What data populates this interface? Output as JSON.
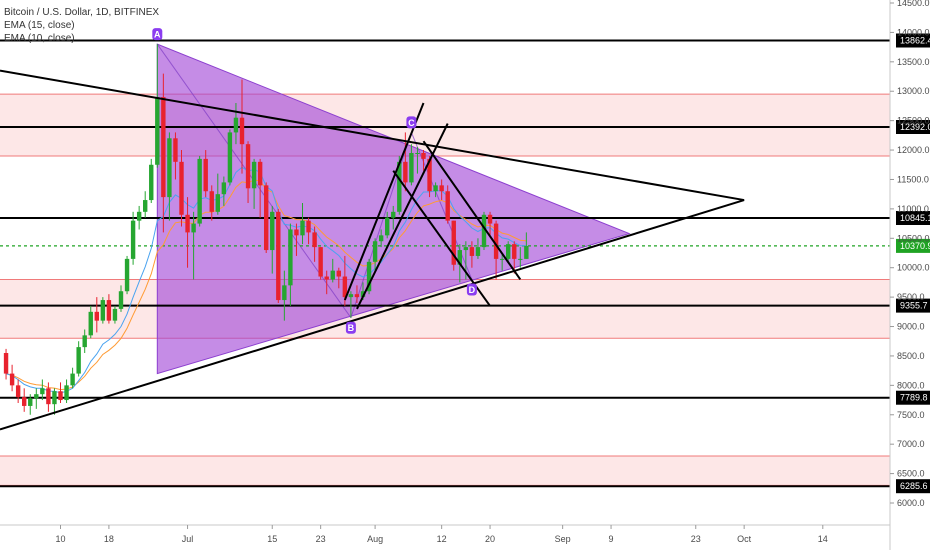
{
  "chart_data": {
    "type": "candlestick",
    "title": "Bitcoin / U.S. Dollar, 1D, BITFINEX",
    "indicators": [
      "EMA (15, close)",
      "EMA (10, close)"
    ],
    "y_axis": {
      "side": "right",
      "range": [
        5900,
        14600
      ],
      "ticks": [
        6000,
        6500,
        7000,
        7500,
        8000,
        8500,
        9000,
        9500,
        10000,
        10500,
        11000,
        11500,
        12000,
        12500,
        13000,
        13500,
        14000,
        14500
      ],
      "tick_labels": [
        "6000.0",
        "6500.0",
        "7000.0",
        "7500.0",
        "8000.0",
        "8500.0",
        "9000.0",
        "9500.0",
        "10000.0",
        "10500.0",
        "11000.0",
        "11500.0",
        "12000.0",
        "12500.0",
        "13000.0",
        "13500.0",
        "14000.0",
        "14500.0"
      ]
    },
    "x_axis": {
      "start": "2019-06-01",
      "ticks": [
        "2019-06-10",
        "2019-06-18",
        "2019-07-01",
        "2019-07-15",
        "2019-07-23",
        "2019-08-01",
        "2019-08-12",
        "2019-08-20",
        "2019-09-01",
        "2019-09-09",
        "2019-09-23",
        "2019-10-01",
        "2019-10-14"
      ],
      "tick_labels": [
        "10",
        "18",
        "Jul",
        "15",
        "23",
        "Aug",
        "12",
        "20",
        "Sep",
        "9",
        "23",
        "Oct",
        "14"
      ]
    },
    "grid": false,
    "candles": [
      {
        "date": "2019-06-01",
        "o": 8550,
        "h": 8620,
        "l": 8100,
        "c": 8200
      },
      {
        "date": "2019-06-02",
        "o": 8200,
        "h": 8350,
        "l": 7900,
        "c": 8000
      },
      {
        "date": "2019-06-03",
        "o": 8000,
        "h": 8100,
        "l": 7700,
        "c": 7800
      },
      {
        "date": "2019-06-04",
        "o": 7800,
        "h": 7950,
        "l": 7550,
        "c": 7650
      },
      {
        "date": "2019-06-05",
        "o": 7650,
        "h": 7850,
        "l": 7500,
        "c": 7780
      },
      {
        "date": "2019-06-06",
        "o": 7780,
        "h": 7950,
        "l": 7600,
        "c": 7850
      },
      {
        "date": "2019-06-07",
        "o": 7850,
        "h": 8100,
        "l": 7750,
        "c": 7950
      },
      {
        "date": "2019-06-08",
        "o": 7950,
        "h": 8050,
        "l": 7550,
        "c": 7680
      },
      {
        "date": "2019-06-09",
        "o": 7680,
        "h": 7950,
        "l": 7500,
        "c": 7900
      },
      {
        "date": "2019-06-10",
        "o": 7900,
        "h": 8050,
        "l": 7700,
        "c": 7750
      },
      {
        "date": "2019-06-11",
        "o": 7750,
        "h": 8100,
        "l": 7700,
        "c": 8000
      },
      {
        "date": "2019-06-12",
        "o": 8000,
        "h": 8300,
        "l": 7950,
        "c": 8200
      },
      {
        "date": "2019-06-13",
        "o": 8200,
        "h": 8750,
        "l": 8150,
        "c": 8650
      },
      {
        "date": "2019-06-14",
        "o": 8650,
        "h": 8950,
        "l": 8550,
        "c": 8850
      },
      {
        "date": "2019-06-15",
        "o": 8850,
        "h": 9350,
        "l": 8800,
        "c": 9250
      },
      {
        "date": "2019-06-16",
        "o": 9250,
        "h": 9500,
        "l": 8900,
        "c": 9100
      },
      {
        "date": "2019-06-17",
        "o": 9100,
        "h": 9500,
        "l": 9050,
        "c": 9450
      },
      {
        "date": "2019-06-18",
        "o": 9450,
        "h": 9550,
        "l": 9050,
        "c": 9100
      },
      {
        "date": "2019-06-19",
        "o": 9100,
        "h": 9350,
        "l": 9050,
        "c": 9300
      },
      {
        "date": "2019-06-20",
        "o": 9300,
        "h": 9700,
        "l": 9250,
        "c": 9600
      },
      {
        "date": "2019-06-21",
        "o": 9600,
        "h": 10200,
        "l": 9550,
        "c": 10150
      },
      {
        "date": "2019-06-22",
        "o": 10150,
        "h": 10950,
        "l": 10050,
        "c": 10800
      },
      {
        "date": "2019-06-23",
        "o": 10800,
        "h": 11050,
        "l": 10650,
        "c": 10950
      },
      {
        "date": "2019-06-24",
        "o": 10950,
        "h": 11300,
        "l": 10850,
        "c": 11150
      },
      {
        "date": "2019-06-25",
        "o": 11150,
        "h": 11850,
        "l": 11100,
        "c": 11750
      },
      {
        "date": "2019-06-26",
        "o": 11750,
        "h": 13800,
        "l": 11700,
        "c": 12900
      },
      {
        "date": "2019-06-27",
        "o": 12900,
        "h": 13300,
        "l": 10600,
        "c": 11200
      },
      {
        "date": "2019-06-28",
        "o": 11200,
        "h": 12300,
        "l": 10800,
        "c": 12200
      },
      {
        "date": "2019-06-29",
        "o": 12200,
        "h": 12300,
        "l": 11500,
        "c": 11800
      },
      {
        "date": "2019-06-30",
        "o": 11800,
        "h": 12000,
        "l": 10700,
        "c": 10900
      },
      {
        "date": "2019-07-01",
        "o": 10900,
        "h": 11200,
        "l": 10000,
        "c": 10600
      },
      {
        "date": "2019-07-02",
        "o": 10600,
        "h": 10950,
        "l": 9800,
        "c": 10750
      },
      {
        "date": "2019-07-03",
        "o": 10750,
        "h": 11900,
        "l": 10700,
        "c": 11850
      },
      {
        "date": "2019-07-04",
        "o": 11850,
        "h": 12000,
        "l": 11200,
        "c": 11300
      },
      {
        "date": "2019-07-05",
        "o": 11300,
        "h": 11400,
        "l": 10800,
        "c": 10950
      },
      {
        "date": "2019-07-06",
        "o": 10950,
        "h": 11600,
        "l": 10900,
        "c": 11250
      },
      {
        "date": "2019-07-07",
        "o": 11250,
        "h": 11550,
        "l": 11050,
        "c": 11450
      },
      {
        "date": "2019-07-08",
        "o": 11450,
        "h": 12350,
        "l": 11400,
        "c": 12300
      },
      {
        "date": "2019-07-09",
        "o": 12300,
        "h": 12800,
        "l": 12100,
        "c": 12550
      },
      {
        "date": "2019-07-10",
        "o": 12550,
        "h": 13200,
        "l": 11600,
        "c": 12100
      },
      {
        "date": "2019-07-11",
        "o": 12100,
        "h": 12150,
        "l": 11100,
        "c": 11350
      },
      {
        "date": "2019-07-12",
        "o": 11350,
        "h": 11850,
        "l": 11000,
        "c": 11800
      },
      {
        "date": "2019-07-13",
        "o": 11800,
        "h": 11850,
        "l": 10850,
        "c": 11400
      },
      {
        "date": "2019-07-14",
        "o": 11400,
        "h": 11450,
        "l": 10250,
        "c": 10300
      },
      {
        "date": "2019-07-15",
        "o": 10300,
        "h": 11050,
        "l": 9900,
        "c": 10950
      },
      {
        "date": "2019-07-16",
        "o": 10950,
        "h": 11000,
        "l": 9400,
        "c": 9450
      },
      {
        "date": "2019-07-17",
        "o": 9450,
        "h": 9950,
        "l": 9100,
        "c": 9700
      },
      {
        "date": "2019-07-18",
        "o": 9700,
        "h": 10750,
        "l": 9350,
        "c": 10650
      },
      {
        "date": "2019-07-19",
        "o": 10650,
        "h": 10750,
        "l": 10200,
        "c": 10550
      },
      {
        "date": "2019-07-20",
        "o": 10550,
        "h": 11100,
        "l": 10400,
        "c": 10800
      },
      {
        "date": "2019-07-21",
        "o": 10800,
        "h": 10850,
        "l": 10400,
        "c": 10600
      },
      {
        "date": "2019-07-22",
        "o": 10600,
        "h": 10700,
        "l": 10100,
        "c": 10350
      },
      {
        "date": "2019-07-23",
        "o": 10350,
        "h": 10350,
        "l": 9800,
        "c": 9850
      },
      {
        "date": "2019-07-24",
        "o": 9850,
        "h": 9950,
        "l": 9550,
        "c": 9800
      },
      {
        "date": "2019-07-25",
        "o": 9800,
        "h": 10150,
        "l": 9750,
        "c": 9950
      },
      {
        "date": "2019-07-26",
        "o": 9950,
        "h": 10000,
        "l": 9650,
        "c": 9850
      },
      {
        "date": "2019-07-27",
        "o": 9850,
        "h": 10200,
        "l": 9350,
        "c": 9500
      },
      {
        "date": "2019-07-28",
        "o": 9500,
        "h": 9600,
        "l": 9150,
        "c": 9550
      },
      {
        "date": "2019-07-29",
        "o": 9550,
        "h": 9700,
        "l": 9400,
        "c": 9500
      },
      {
        "date": "2019-07-30",
        "o": 9500,
        "h": 9750,
        "l": 9450,
        "c": 9600
      },
      {
        "date": "2019-07-31",
        "o": 9600,
        "h": 10150,
        "l": 9550,
        "c": 10100
      },
      {
        "date": "2019-08-01",
        "o": 10100,
        "h": 10500,
        "l": 9950,
        "c": 10450
      },
      {
        "date": "2019-08-02",
        "o": 10450,
        "h": 10650,
        "l": 10350,
        "c": 10550
      },
      {
        "date": "2019-08-03",
        "o": 10550,
        "h": 10950,
        "l": 10500,
        "c": 10850
      },
      {
        "date": "2019-08-04",
        "o": 10850,
        "h": 11050,
        "l": 10650,
        "c": 10950
      },
      {
        "date": "2019-08-05",
        "o": 10950,
        "h": 11900,
        "l": 10900,
        "c": 11800
      },
      {
        "date": "2019-08-06",
        "o": 11800,
        "h": 12300,
        "l": 11300,
        "c": 11450
      },
      {
        "date": "2019-08-07",
        "o": 11450,
        "h": 12100,
        "l": 11400,
        "c": 11950
      },
      {
        "date": "2019-08-08",
        "o": 11950,
        "h": 12050,
        "l": 11600,
        "c": 11950
      },
      {
        "date": "2019-08-09",
        "o": 11950,
        "h": 12000,
        "l": 11650,
        "c": 11850
      },
      {
        "date": "2019-08-10",
        "o": 11850,
        "h": 11900,
        "l": 11200,
        "c": 11300
      },
      {
        "date": "2019-08-11",
        "o": 11300,
        "h": 11450,
        "l": 11200,
        "c": 11400
      },
      {
        "date": "2019-08-12",
        "o": 11400,
        "h": 11500,
        "l": 11150,
        "c": 11300
      },
      {
        "date": "2019-08-13",
        "o": 11300,
        "h": 11400,
        "l": 10750,
        "c": 10800
      },
      {
        "date": "2019-08-14",
        "o": 10800,
        "h": 10800,
        "l": 9950,
        "c": 10050
      },
      {
        "date": "2019-08-15",
        "o": 10050,
        "h": 10400,
        "l": 9750,
        "c": 10300
      },
      {
        "date": "2019-08-16",
        "o": 10300,
        "h": 10450,
        "l": 9800,
        "c": 10350
      },
      {
        "date": "2019-08-17",
        "o": 10350,
        "h": 10450,
        "l": 10000,
        "c": 10200
      },
      {
        "date": "2019-08-18",
        "o": 10200,
        "h": 10500,
        "l": 10150,
        "c": 10350
      },
      {
        "date": "2019-08-19",
        "o": 10350,
        "h": 10950,
        "l": 10300,
        "c": 10900
      },
      {
        "date": "2019-08-20",
        "o": 10900,
        "h": 10950,
        "l": 10550,
        "c": 10750
      },
      {
        "date": "2019-08-21",
        "o": 10750,
        "h": 10800,
        "l": 9800,
        "c": 10150
      },
      {
        "date": "2019-08-22",
        "o": 10150,
        "h": 10250,
        "l": 9950,
        "c": 10150
      },
      {
        "date": "2019-08-23",
        "o": 10150,
        "h": 10450,
        "l": 10100,
        "c": 10400
      },
      {
        "date": "2019-08-24",
        "o": 10400,
        "h": 10450,
        "l": 9900,
        "c": 10150
      },
      {
        "date": "2019-08-25",
        "o": 10150,
        "h": 10350,
        "l": 10000,
        "c": 10150
      },
      {
        "date": "2019-08-26",
        "o": 10150,
        "h": 10600,
        "l": 10150,
        "c": 10370
      }
    ],
    "horizontal_levels": [
      {
        "price": 13862.4,
        "label": "13862.4"
      },
      {
        "price": 12392.0,
        "label": "12392.0"
      },
      {
        "price": 10845.1,
        "label": "10845.1"
      },
      {
        "price": 9355.7,
        "label": "9355.7"
      },
      {
        "price": 7789.8,
        "label": "7789.8"
      },
      {
        "price": 6285.6,
        "label": "6285.6"
      }
    ],
    "current_price": {
      "price": 10370.9,
      "label": "10370.9",
      "color": "#1fa323"
    },
    "zones": [
      {
        "from": 11900,
        "to": 12950
      },
      {
        "from": 8800,
        "to": 9800
      },
      {
        "from": 6300,
        "to": 6800
      }
    ],
    "pattern_points": [
      {
        "label": "A",
        "date": "2019-06-26",
        "price": 13800
      },
      {
        "label": "B",
        "date": "2019-07-28",
        "price": 9150
      },
      {
        "label": "C",
        "date": "2019-08-07",
        "price": 12300
      },
      {
        "label": "D",
        "date": "2019-08-17",
        "price": 9800
      }
    ],
    "triangle": [
      {
        "date": "2019-06-26",
        "price": 13800
      },
      {
        "date": "2019-06-26",
        "price": 8200
      },
      {
        "date": "2019-09-12",
        "price": 10580
      }
    ],
    "trendlines": [
      {
        "from": {
          "date": "2019-05-31",
          "price": 7250
        },
        "to": {
          "date": "2019-10-01",
          "price": 11150
        }
      },
      {
        "from": {
          "date": "2019-05-31",
          "price": 13350
        },
        "to": {
          "date": "2019-10-01",
          "price": 11150
        }
      },
      {
        "from": {
          "date": "2019-07-27",
          "price": 9450
        },
        "to": {
          "date": "2019-08-09",
          "price": 12800
        }
      },
      {
        "from": {
          "date": "2019-07-29",
          "price": 9300
        },
        "to": {
          "date": "2019-08-13",
          "price": 12450
        }
      },
      {
        "from": {
          "date": "2019-08-04",
          "price": 11650
        },
        "to": {
          "date": "2019-08-20",
          "price": 9350
        }
      },
      {
        "from": {
          "date": "2019-08-09",
          "price": 12150
        },
        "to": {
          "date": "2019-08-25",
          "price": 9800
        }
      }
    ],
    "colors": {
      "up": "#26a631",
      "down": "#e8222e",
      "triangle_fill": "#a146d6",
      "zone_fill": "#fde7e7",
      "zone_border": "#f07a7a",
      "ema15": "#ff9b34",
      "ema10": "#4aa3f0",
      "label_fill": "#8b3df0"
    }
  }
}
